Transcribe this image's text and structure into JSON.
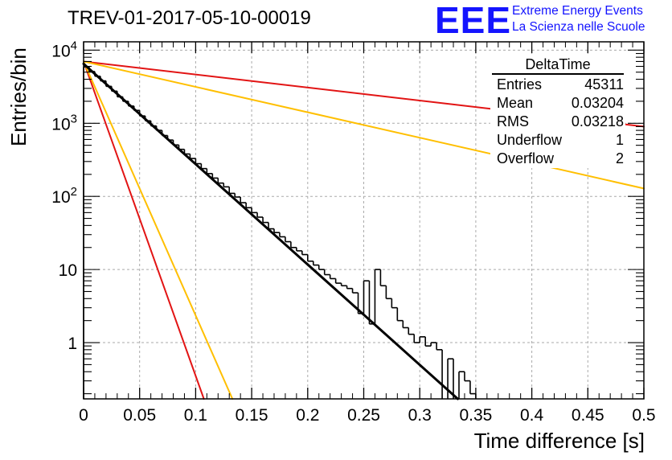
{
  "header": {
    "run_title": "TREV-01-2017-05-10-00019"
  },
  "logo": {
    "letters": "EEE",
    "line1": "Extreme Energy Events",
    "line2": "La Scienza nelle Scuole",
    "color": "#1414ff"
  },
  "stats_box": {
    "title": "DeltaTime",
    "rows": [
      {
        "label": "Entries",
        "value": "45311"
      },
      {
        "label": "Mean",
        "value": "0.03204"
      },
      {
        "label": "RMS",
        "value": "0.03218"
      },
      {
        "label": "Underflow",
        "value": "1"
      },
      {
        "label": "Overflow",
        "value": "2"
      }
    ]
  },
  "chart_data": {
    "type": "line",
    "xlabel": "Time difference [s]",
    "ylabel": "Entries/bin",
    "x_range": [
      0,
      0.5
    ],
    "y_range": [
      0.17,
      13000
    ],
    "y_scale": "log",
    "grid": true,
    "x_ticks": [
      "0",
      "0.05",
      "0.1",
      "0.15",
      "0.2",
      "0.25",
      "0.3",
      "0.35",
      "0.4",
      "0.45",
      "0.5"
    ],
    "y_ticks": [
      {
        "value": 10000,
        "label": "10",
        "exponent": "4"
      },
      {
        "value": 1000,
        "label": "10",
        "exponent": "3"
      },
      {
        "value": 100,
        "label": "10",
        "exponent": "2"
      },
      {
        "value": 10,
        "label": "10",
        "exponent": ""
      },
      {
        "value": 1,
        "label": "1",
        "exponent": ""
      }
    ],
    "histogram": {
      "bin_width": 0.005,
      "color": "#000000",
      "values": [
        5900,
        5100,
        4400,
        3800,
        3200,
        2750,
        2300,
        2000,
        1720,
        1500,
        1260,
        1080,
        920,
        800,
        680,
        590,
        505,
        440,
        380,
        330,
        280,
        240,
        205,
        178,
        152,
        135,
        110,
        98,
        82,
        70,
        60,
        52,
        44,
        36,
        32,
        28,
        24,
        20,
        18,
        16,
        13,
        11.5,
        10,
        8.5,
        7.5,
        6.5,
        6,
        5.5,
        4.8,
        2.5,
        7,
        1.8,
        10,
        6,
        4,
        3,
        2,
        1.6,
        1.3,
        1,
        1.2,
        0.9,
        1,
        0.8,
        0,
        0.6,
        0,
        0.4,
        0.3,
        0.2,
        0.1,
        0,
        0,
        0.05,
        0.05,
        0.02,
        0.02,
        0.02,
        0.02,
        0.03,
        0.01,
        0,
        0.02,
        0,
        0,
        0,
        0.01,
        0,
        0.01,
        0,
        0,
        0,
        0,
        0,
        0,
        0,
        0,
        0,
        0,
        0
      ],
      "values_note": "estimated"
    },
    "fit": {
      "color": "#000000",
      "amplitude": 6500,
      "slope_per_s": -31.6,
      "x_range": [
        0,
        0.345
      ]
    },
    "reference_lines": [
      {
        "color": "#e21414",
        "amplitude": 7000,
        "slope_per_s": -99,
        "x_range": [
          0,
          0.11
        ]
      },
      {
        "color": "#ffbf00",
        "amplitude": 7000,
        "slope_per_s": -80,
        "x_range": [
          0,
          0.136
        ]
      },
      {
        "color": "#e21414",
        "amplitude": 7000,
        "slope_per_s": -4.1,
        "x_range": [
          0,
          0.5
        ]
      },
      {
        "color": "#ffbf00",
        "amplitude": 7000,
        "slope_per_s": -8.0,
        "x_range": [
          0,
          0.5
        ]
      }
    ]
  }
}
